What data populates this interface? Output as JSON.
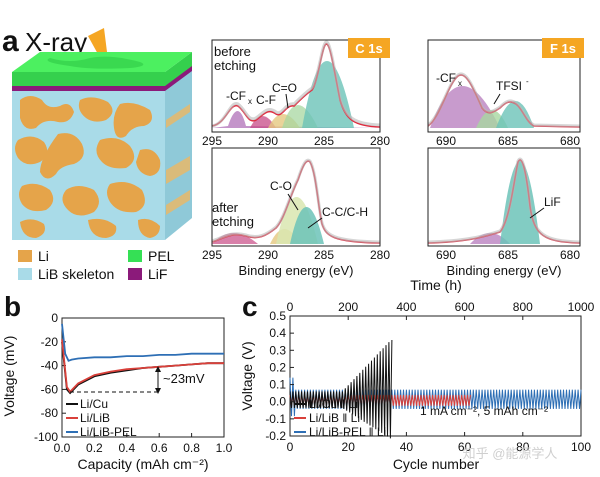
{
  "panels": {
    "a_label": "a",
    "b_label": "b",
    "c_label": "c"
  },
  "xray": {
    "label": "X-ray"
  },
  "legend_a": [
    {
      "label": "Li",
      "color": "#e5a44a"
    },
    {
      "label": "PEL",
      "color": "#35e055"
    },
    {
      "label": "LiB skeleton",
      "color": "#a9dbe8"
    },
    {
      "label": "LiF",
      "color": "#8b1a7a"
    }
  ],
  "xps": {
    "c1s_badge": "C 1s",
    "f1s_badge": "F 1s",
    "before_label": "before\netching",
    "after_label": "after\netching",
    "annotations": {
      "cf_x": "-CF",
      "x_sub": "x",
      "c_f": "C-F",
      "c_o_double": "C=O",
      "c_o": "C-O",
      "cc_ch": "C-C/C-H",
      "tfsi": "TFSI",
      "tfsi_sup": "-",
      "lif": "LiF",
      "f_cf_x": "-CF",
      "f_x_sub": "x"
    },
    "c_ticks": [
      "295",
      "290",
      "285",
      "280"
    ],
    "f_ticks": [
      "690",
      "685",
      "680"
    ],
    "xlabel_c": "Binding energy (eV)",
    "xlabel_f": "Binding energy (eV)"
  },
  "chart_b": {
    "type": "line",
    "xlabel": "Capacity (mAh cm⁻²)",
    "ylabel": "Voltage (mV)",
    "xlim": [
      0,
      1.0
    ],
    "ylim": [
      -100,
      0
    ],
    "xticks": [
      "0.0",
      "0.2",
      "0.4",
      "0.6",
      "0.8",
      "1.0"
    ],
    "yticks": [
      "0",
      "-20",
      "-40",
      "-60",
      "-80",
      "-100"
    ],
    "annotation": "~23mV",
    "series": [
      {
        "name": "Li/Cu",
        "color": "#111111",
        "x": [
          0,
          0.03,
          0.05,
          0.1,
          0.2,
          0.3,
          0.4,
          0.5,
          0.6,
          0.7,
          0.8,
          0.9,
          1.0
        ],
        "y": [
          -20,
          -60,
          -63,
          -56,
          -49,
          -46,
          -44,
          -42,
          -41,
          -40,
          -39,
          -38,
          -38
        ]
      },
      {
        "name": "Li/LiB",
        "color": "#d9403a",
        "x": [
          0,
          0.03,
          0.05,
          0.1,
          0.2,
          0.3,
          0.4,
          0.5,
          0.6,
          0.7,
          0.8,
          0.9,
          1.0
        ],
        "y": [
          -18,
          -58,
          -62,
          -55,
          -48,
          -45,
          -43,
          -42,
          -41,
          -40,
          -39,
          -38,
          -38
        ]
      },
      {
        "name": "Li/LiB-PEL",
        "color": "#2e6fb5",
        "x": [
          0,
          0.02,
          0.04,
          0.06,
          0.1,
          0.2,
          0.3,
          0.4,
          0.5,
          0.6,
          0.7,
          0.8,
          0.9,
          1.0
        ],
        "y": [
          -5,
          -30,
          -36,
          -35,
          -34,
          -33,
          -33,
          -32,
          -32,
          -31,
          -31,
          -30,
          -30,
          -30
        ]
      }
    ]
  },
  "chart_c": {
    "type": "line",
    "xlabel_bottom": "Cycle number",
    "xlabel_top": "Time (h)",
    "ylabel": "Voltage (V)",
    "ylim": [
      -0.2,
      0.5
    ],
    "xlim_bottom": [
      0,
      100
    ],
    "xlim_top": [
      0,
      1000
    ],
    "xticks_bottom": [
      "0",
      "20",
      "40",
      "60",
      "80",
      "100"
    ],
    "xticks_top": [
      "0",
      "200",
      "400",
      "600",
      "800",
      "1000"
    ],
    "yticks": [
      "0.5",
      "0.4",
      "0.3",
      "0.2",
      "0.1",
      "0.0",
      "-0.1",
      "-0.2"
    ],
    "condition": "1 mA cm⁻², 5 mAh cm⁻²",
    "series": [
      {
        "name": "Li/Cu ǁ Li",
        "color": "#111111",
        "end_cycle": 35
      },
      {
        "name": "Li/LiB ǁ Li",
        "color": "#d9403a",
        "end_cycle": 62
      },
      {
        "name": "Li/LiB-PEL ǁ Li",
        "color": "#2e6fb5",
        "end_cycle": 100
      }
    ]
  },
  "watermark": "知乎 @能源学人"
}
